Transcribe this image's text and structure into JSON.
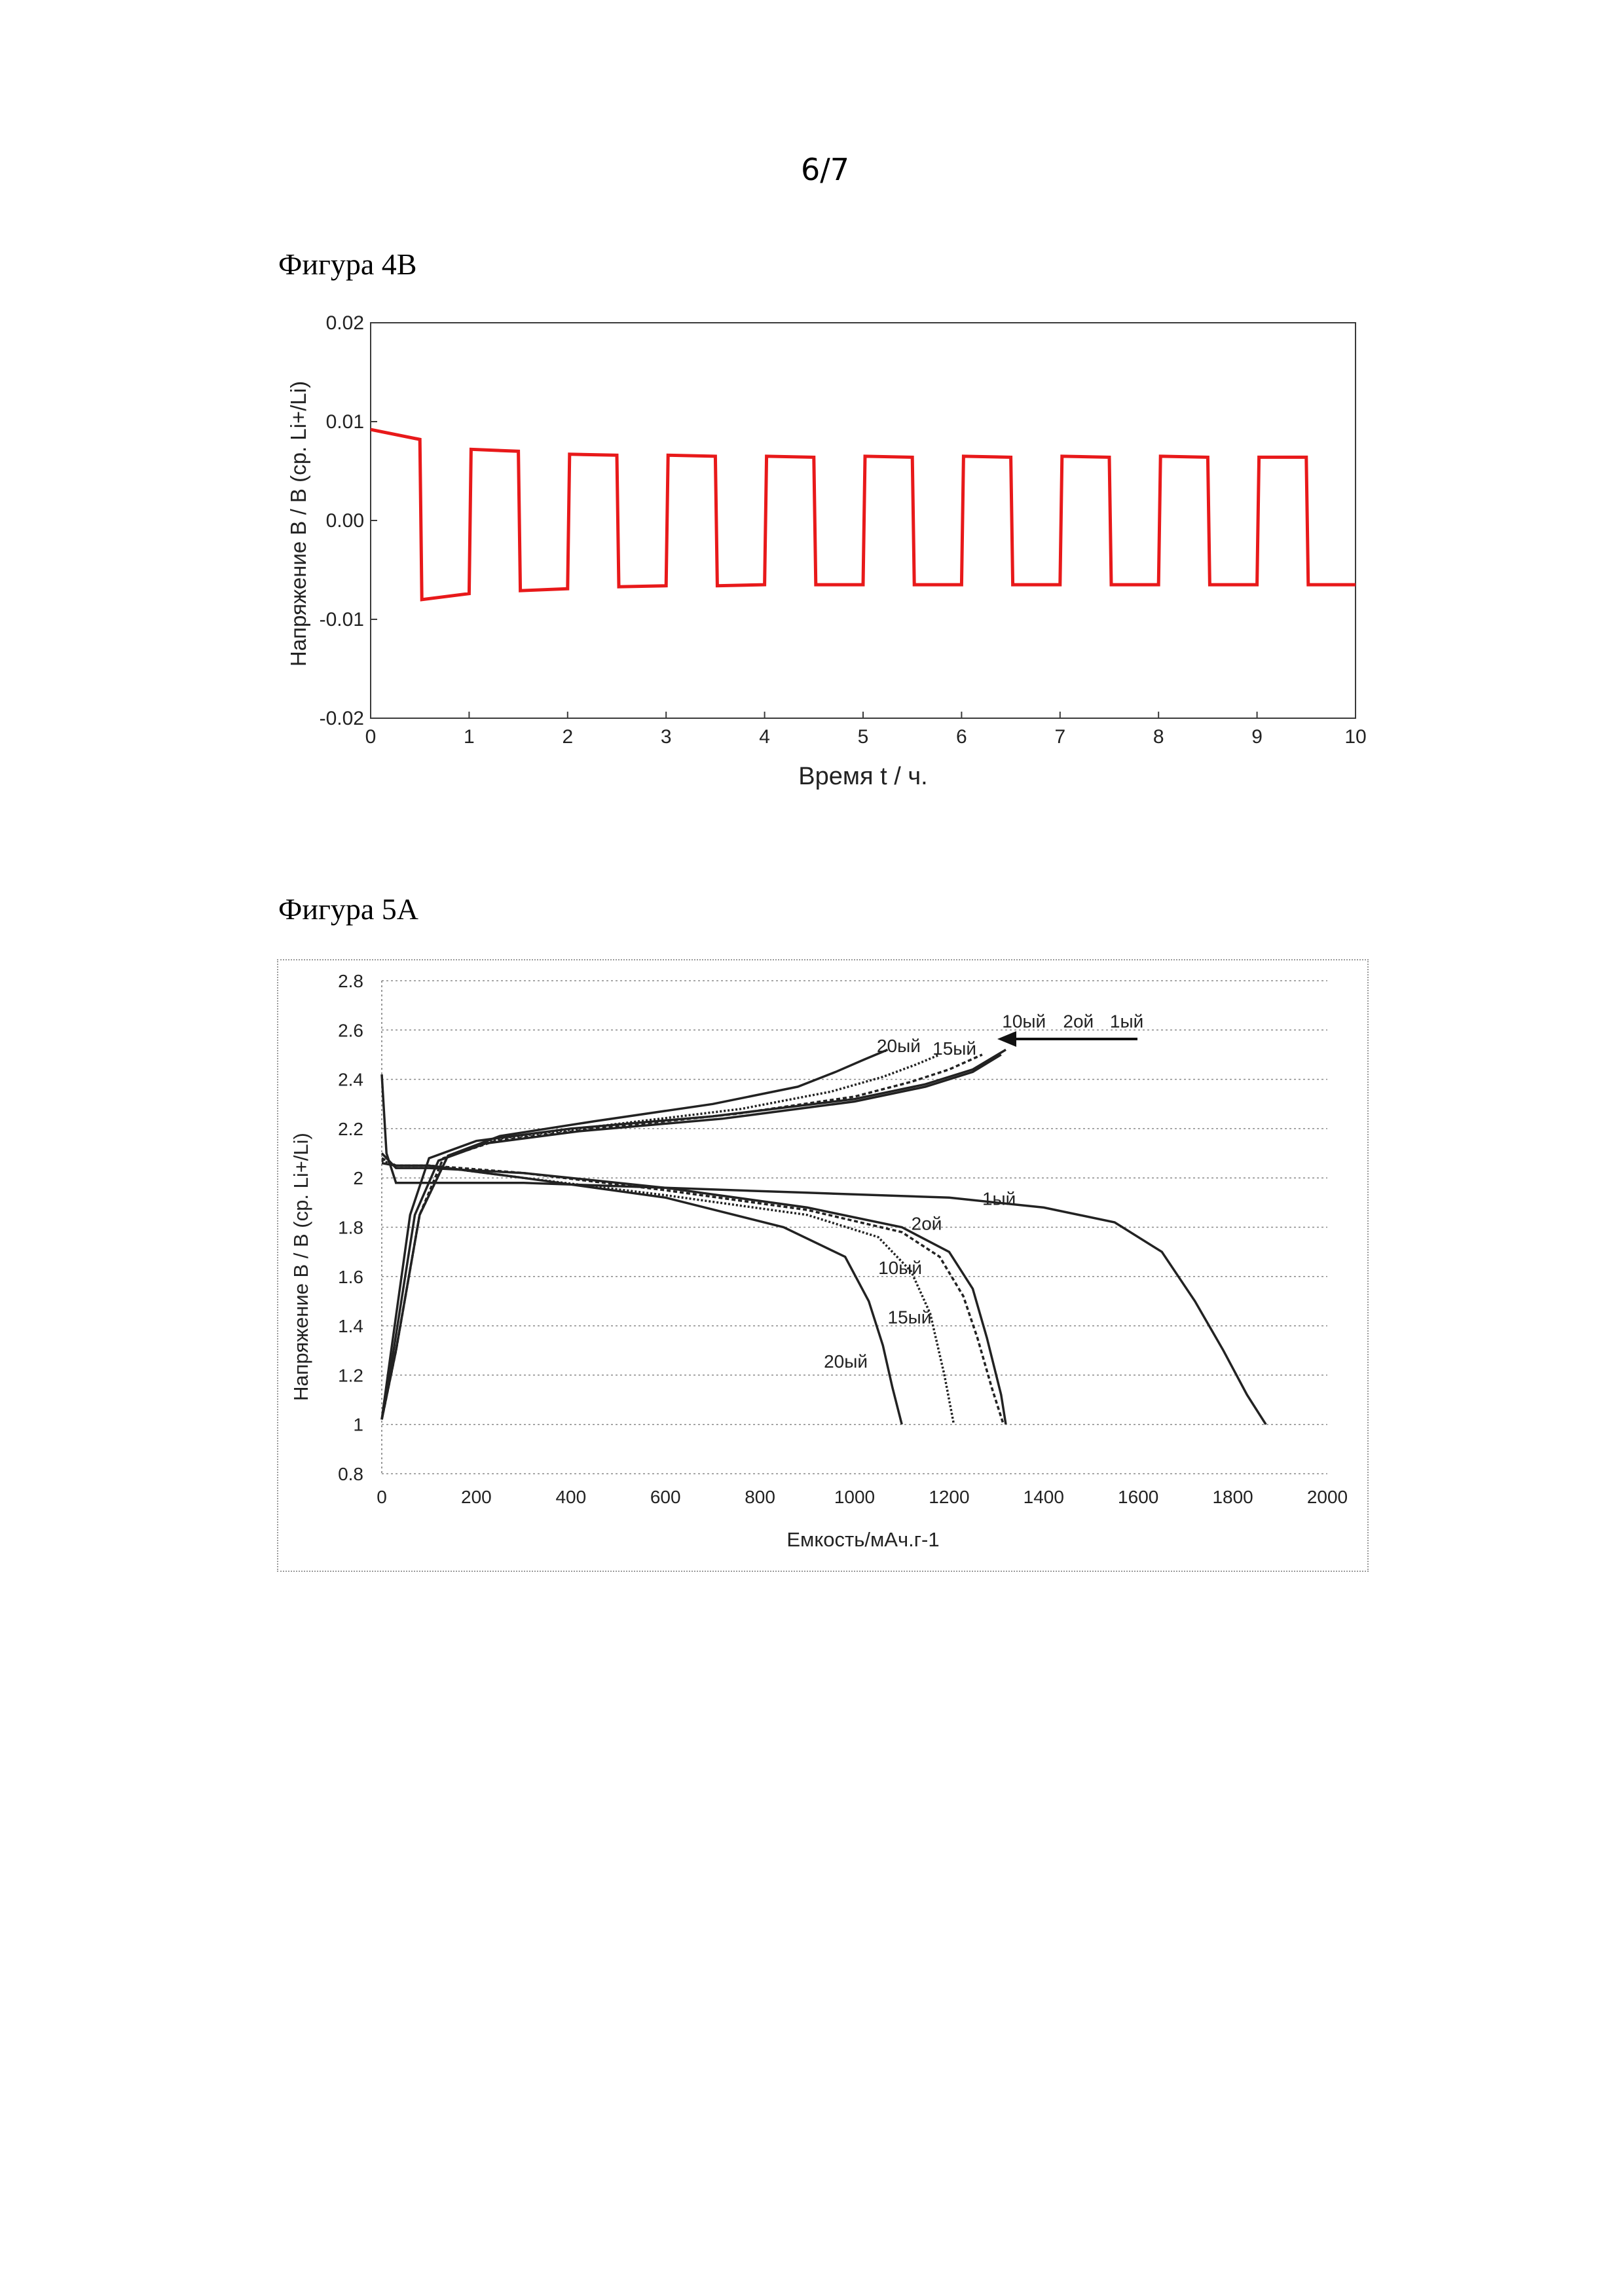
{
  "page_number": "6/7",
  "figures": [
    {
      "title": "Фигура 4B"
    },
    {
      "title": "Фигура 5A"
    }
  ],
  "colors": {
    "trace_4b": "#e8191a",
    "curves_5a": "#222222"
  },
  "chart_data": [
    {
      "type": "line",
      "title": "",
      "xlabel": "Время t / ч.",
      "ylabel": "Напряжение В / В (ср. Li+/Li)",
      "xlim": [
        0,
        10
      ],
      "ylim": [
        -0.02,
        0.02
      ],
      "x_ticks": [
        "0",
        "1",
        "2",
        "3",
        "4",
        "5",
        "6",
        "7",
        "8",
        "9",
        "10"
      ],
      "y_ticks": [
        "-0.02",
        "-0.01",
        "0.00",
        "0.01",
        "0.02"
      ],
      "grid": false,
      "series": [
        {
          "x": [
            0,
            0.5,
            0.52,
            1.0,
            1.02,
            1.5,
            1.52,
            2.0,
            2.02,
            2.5,
            2.52,
            3.0,
            3.02,
            3.5,
            3.52,
            4.0,
            4.02,
            4.5,
            4.52,
            5.0,
            5.02,
            5.5,
            5.52,
            6.0,
            6.02,
            6.5,
            6.52,
            7.0,
            7.02,
            7.5,
            7.52,
            8.0,
            8.02,
            8.5,
            8.52,
            9.0,
            9.02,
            9.5,
            9.52,
            10.0
          ],
          "y": [
            0.0092,
            0.0082,
            -0.008,
            -0.0074,
            0.0072,
            0.007,
            -0.0071,
            -0.0069,
            0.0067,
            0.0066,
            -0.0067,
            -0.0066,
            0.0066,
            0.0065,
            -0.0066,
            -0.0065,
            0.0065,
            0.0064,
            -0.0065,
            -0.0065,
            0.0065,
            0.0064,
            -0.0065,
            -0.0065,
            0.0065,
            0.0064,
            -0.0065,
            -0.0065,
            0.0065,
            0.0064,
            -0.0065,
            -0.0065,
            0.0065,
            0.0064,
            -0.0065,
            -0.0065,
            0.0064,
            0.0064,
            -0.0065,
            -0.0065
          ]
        }
      ]
    },
    {
      "type": "line",
      "title": "",
      "xlabel": "Емкость/мАч.г-1",
      "ylabel": "Напряжение В / В (ср. Li+/Li)",
      "xlim": [
        0,
        2000
      ],
      "ylim": [
        0.8,
        2.8
      ],
      "x_ticks": [
        "0",
        "200",
        "400",
        "600",
        "800",
        "1000",
        "1200",
        "1400",
        "1600",
        "1800",
        "2000"
      ],
      "y_ticks": [
        "0.8",
        "1",
        "1.2",
        "1.4",
        "1.6",
        "1.8",
        "2",
        "2.2",
        "2.4",
        "2.6",
        "2.8"
      ],
      "grid": true,
      "annotations": [
        "10ый",
        "2ой",
        "1ый",
        "20ый",
        "15ый",
        "1ый",
        "2ой",
        "10ый",
        "15ый",
        "20ый"
      ],
      "series": [
        {
          "name": "1ый",
          "x": [
            0,
            10,
            30,
            100,
            300,
            600,
            900,
            1200,
            1400,
            1550,
            1650,
            1720,
            1780,
            1830,
            1870
          ],
          "y": [
            2.42,
            2.1,
            1.98,
            1.98,
            1.98,
            1.96,
            1.94,
            1.92,
            1.88,
            1.82,
            1.7,
            1.5,
            1.3,
            1.12,
            1.0
          ]
        },
        {
          "name": "2ой",
          "x": [
            0,
            30,
            100,
            300,
            600,
            900,
            1100,
            1200,
            1250,
            1280,
            1310,
            1320
          ],
          "y": [
            2.1,
            2.04,
            2.04,
            2.02,
            1.96,
            1.88,
            1.8,
            1.7,
            1.55,
            1.35,
            1.12,
            1.0
          ]
        },
        {
          "name": "10ый",
          "x": [
            0,
            30,
            100,
            300,
            600,
            900,
            1100,
            1180,
            1230,
            1260,
            1290,
            1315
          ],
          "y": [
            2.08,
            2.05,
            2.05,
            2.02,
            1.95,
            1.87,
            1.78,
            1.68,
            1.52,
            1.35,
            1.15,
            1.0
          ]
        },
        {
          "name": "15ый",
          "x": [
            0,
            30,
            100,
            300,
            600,
            900,
            1050,
            1120,
            1160,
            1190,
            1210
          ],
          "y": [
            2.07,
            2.05,
            2.05,
            2.0,
            1.93,
            1.85,
            1.76,
            1.62,
            1.45,
            1.2,
            1.0
          ]
        },
        {
          "name": "20ый",
          "x": [
            0,
            30,
            100,
            300,
            600,
            850,
            980,
            1030,
            1060,
            1080,
            1100
          ],
          "y": [
            2.06,
            2.05,
            2.05,
            2.0,
            1.92,
            1.8,
            1.68,
            1.5,
            1.32,
            1.15,
            1.0
          ]
        },
        {
          "name": "1ый",
          "x": [
            0,
            20,
            60,
            100,
            200,
            400,
            700,
            1000,
            1150,
            1250,
            1320
          ],
          "y": [
            1.02,
            1.3,
            1.85,
            2.08,
            2.15,
            2.2,
            2.25,
            2.32,
            2.38,
            2.44,
            2.52
          ]
        },
        {
          "name": "2ой",
          "x": [
            0,
            25,
            70,
            120,
            220,
            420,
            720,
            1000,
            1150,
            1250,
            1310
          ],
          "y": [
            1.02,
            1.3,
            1.85,
            2.07,
            2.14,
            2.19,
            2.24,
            2.31,
            2.37,
            2.43,
            2.5
          ]
        },
        {
          "name": "10ый",
          "x": [
            0,
            30,
            80,
            130,
            240,
            450,
            750,
            1000,
            1120,
            1200,
            1270
          ],
          "y": [
            1.02,
            1.3,
            1.85,
            2.08,
            2.15,
            2.2,
            2.26,
            2.33,
            2.39,
            2.44,
            2.5
          ]
        },
        {
          "name": "15ый",
          "x": [
            0,
            30,
            80,
            140,
            250,
            460,
            760,
            950,
            1060,
            1130,
            1180
          ],
          "y": [
            1.02,
            1.3,
            1.85,
            2.09,
            2.16,
            2.21,
            2.28,
            2.35,
            2.41,
            2.46,
            2.5
          ]
        },
        {
          "name": "20ый",
          "x": [
            0,
            30,
            80,
            140,
            250,
            450,
            700,
            880,
            960,
            1020,
            1070
          ],
          "y": [
            1.02,
            1.3,
            1.85,
            2.09,
            2.17,
            2.23,
            2.3,
            2.37,
            2.43,
            2.48,
            2.52
          ]
        }
      ]
    }
  ]
}
